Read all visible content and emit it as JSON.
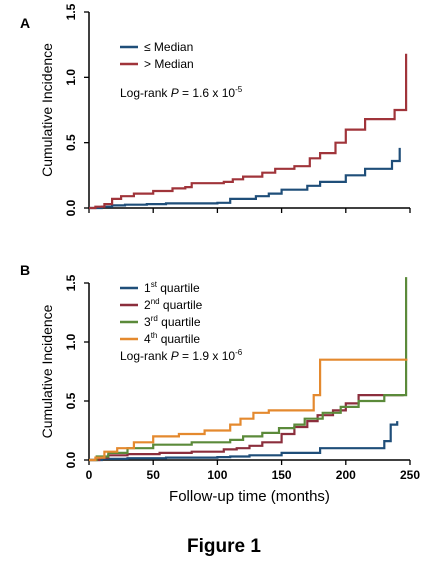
{
  "figure": {
    "caption": "Figure 1",
    "x_axis_label": "Follow-up time (months)",
    "x_ticks": [
      0,
      50,
      100,
      150,
      200,
      250
    ]
  },
  "chart_data": [
    {
      "type": "line",
      "panel_label": "A",
      "xlabel": "",
      "ylabel": "Cumulative Incidence",
      "xlim": [
        0,
        250
      ],
      "ylim": [
        0,
        1.5
      ],
      "y_ticks": [
        "0.0",
        "0.5",
        "1.0",
        "1.5"
      ],
      "x_tick_labels_shown": false,
      "legend_position": "top-left",
      "annotation": {
        "prefix": "Log-rank ",
        "p": "P",
        "mid": " = 1.6 x 10",
        "exp": "-5"
      },
      "series": [
        {
          "name": "≤ Median",
          "color": "#1F4E79",
          "x": [
            0,
            10,
            18,
            28,
            45,
            60,
            100,
            110,
            130,
            140,
            150,
            170,
            180,
            200,
            215,
            236,
            242
          ],
          "y": [
            0,
            0.01,
            0.02,
            0.025,
            0.03,
            0.035,
            0.04,
            0.07,
            0.09,
            0.11,
            0.14,
            0.17,
            0.2,
            0.25,
            0.3,
            0.36,
            0.46
          ]
        },
        {
          "name": "> Median",
          "color": "#A0343A",
          "x": [
            0,
            5,
            12,
            18,
            25,
            35,
            50,
            65,
            75,
            80,
            105,
            112,
            120,
            135,
            145,
            160,
            172,
            180,
            192,
            200,
            215,
            238,
            247
          ],
          "y": [
            0,
            0.01,
            0.03,
            0.07,
            0.09,
            0.11,
            0.13,
            0.15,
            0.16,
            0.19,
            0.2,
            0.22,
            0.24,
            0.27,
            0.3,
            0.32,
            0.38,
            0.42,
            0.5,
            0.6,
            0.68,
            0.75,
            1.18
          ]
        }
      ]
    },
    {
      "type": "line",
      "panel_label": "B",
      "xlabel": "Follow-up time (months)",
      "ylabel": "Cumulative Incidence",
      "xlim": [
        0,
        250
      ],
      "ylim": [
        0,
        1.5
      ],
      "y_ticks": [
        "0.0",
        "0.5",
        "1.0",
        "1.5"
      ],
      "x_tick_labels_shown": true,
      "legend_position": "top-left",
      "annotation": {
        "prefix": "Log-rank ",
        "p": "P",
        "mid": " = 1.9 x 10",
        "exp": "-6"
      },
      "series": [
        {
          "name": "1st quartile",
          "name_base": "1",
          "name_sup": "st",
          "name_rest": " quartile",
          "color": "#1F4E79",
          "x": [
            0,
            10,
            30,
            60,
            100,
            110,
            125,
            150,
            180,
            230,
            235,
            240
          ],
          "y": [
            0,
            0.01,
            0.015,
            0.02,
            0.025,
            0.03,
            0.04,
            0.06,
            0.1,
            0.16,
            0.3,
            0.33
          ]
        },
        {
          "name": "2nd quartile",
          "name_base": "2",
          "name_sup": "nd",
          "name_rest": " quartile",
          "color": "#8B2E3C",
          "x": [
            0,
            8,
            15,
            30,
            55,
            80,
            105,
            115,
            125,
            135,
            150,
            160,
            170,
            178,
            190,
            200,
            210,
            245
          ],
          "y": [
            0,
            0.02,
            0.04,
            0.05,
            0.06,
            0.07,
            0.09,
            0.1,
            0.12,
            0.15,
            0.22,
            0.28,
            0.33,
            0.38,
            0.42,
            0.48,
            0.55,
            0.55
          ]
        },
        {
          "name": "3rd quartile",
          "name_base": "3",
          "name_sup": "rd",
          "name_rest": " quartile",
          "color": "#5B8A3A",
          "x": [
            0,
            6,
            15,
            30,
            50,
            80,
            110,
            120,
            135,
            148,
            160,
            168,
            182,
            196,
            210,
            230,
            245,
            247
          ],
          "y": [
            0,
            0.03,
            0.06,
            0.1,
            0.13,
            0.15,
            0.17,
            0.2,
            0.23,
            0.27,
            0.3,
            0.35,
            0.4,
            0.45,
            0.5,
            0.55,
            0.55,
            1.55
          ]
        },
        {
          "name": "4th quartile",
          "name_base": "4",
          "name_sup": "th",
          "name_rest": " quartile",
          "color": "#E4892E",
          "x": [
            0,
            5,
            12,
            22,
            35,
            50,
            70,
            90,
            110,
            118,
            128,
            140,
            175,
            180,
            248
          ],
          "y": [
            0,
            0.02,
            0.07,
            0.1,
            0.15,
            0.2,
            0.22,
            0.25,
            0.3,
            0.35,
            0.4,
            0.42,
            0.55,
            0.85,
            0.85
          ]
        }
      ]
    }
  ]
}
